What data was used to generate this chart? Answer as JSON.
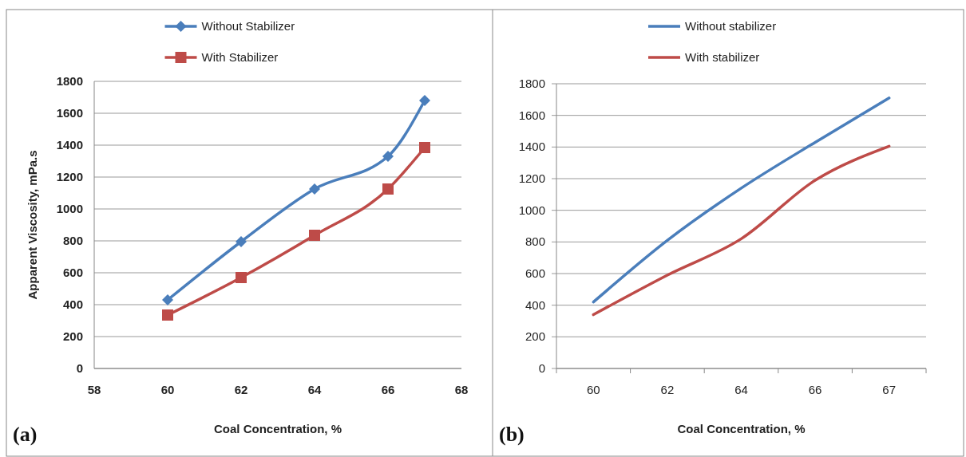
{
  "chart_data": [
    {
      "type": "line",
      "xlabel": "Coal Concentration, %",
      "ylabel": "Apparent Viscosity, mPa.s",
      "annotations": [
        "(a)"
      ],
      "x": [
        60,
        62,
        64,
        66,
        67
      ],
      "xlim": [
        58,
        68
      ],
      "xticks": [
        58,
        60,
        62,
        64,
        66,
        68
      ],
      "ylim": [
        0,
        1800
      ],
      "yticks": [
        0,
        200,
        400,
        600,
        800,
        1000,
        1200,
        1400,
        1600,
        1800
      ],
      "grid": "y",
      "legend": "top",
      "series": [
        {
          "name": "Without Stabilizer",
          "color": "#4a7ebb",
          "marker": "diamond",
          "values": [
            430,
            795,
            1125,
            1330,
            1680
          ]
        },
        {
          "name": "With Stabilizer",
          "color": "#be4b48",
          "marker": "square",
          "values": [
            335,
            570,
            835,
            1125,
            1385
          ]
        }
      ]
    },
    {
      "type": "line",
      "xlabel": "Coal Concentration, %",
      "annotations": [
        "(b)"
      ],
      "categories": [
        "60",
        "62",
        "64",
        "66",
        "67"
      ],
      "ylim": [
        0,
        1800
      ],
      "yticks": [
        0,
        200,
        400,
        600,
        800,
        1000,
        1200,
        1400,
        1600,
        1800
      ],
      "grid": "y",
      "legend": "top",
      "marker": "none",
      "series": [
        {
          "name": "Without stabilizer",
          "color": "#4a7ebb",
          "values": [
            420,
            810,
            1140,
            1430,
            1710
          ]
        },
        {
          "name": "With stabilizer",
          "color": "#be4b48",
          "values": [
            340,
            590,
            820,
            1190,
            1405
          ]
        }
      ]
    }
  ]
}
